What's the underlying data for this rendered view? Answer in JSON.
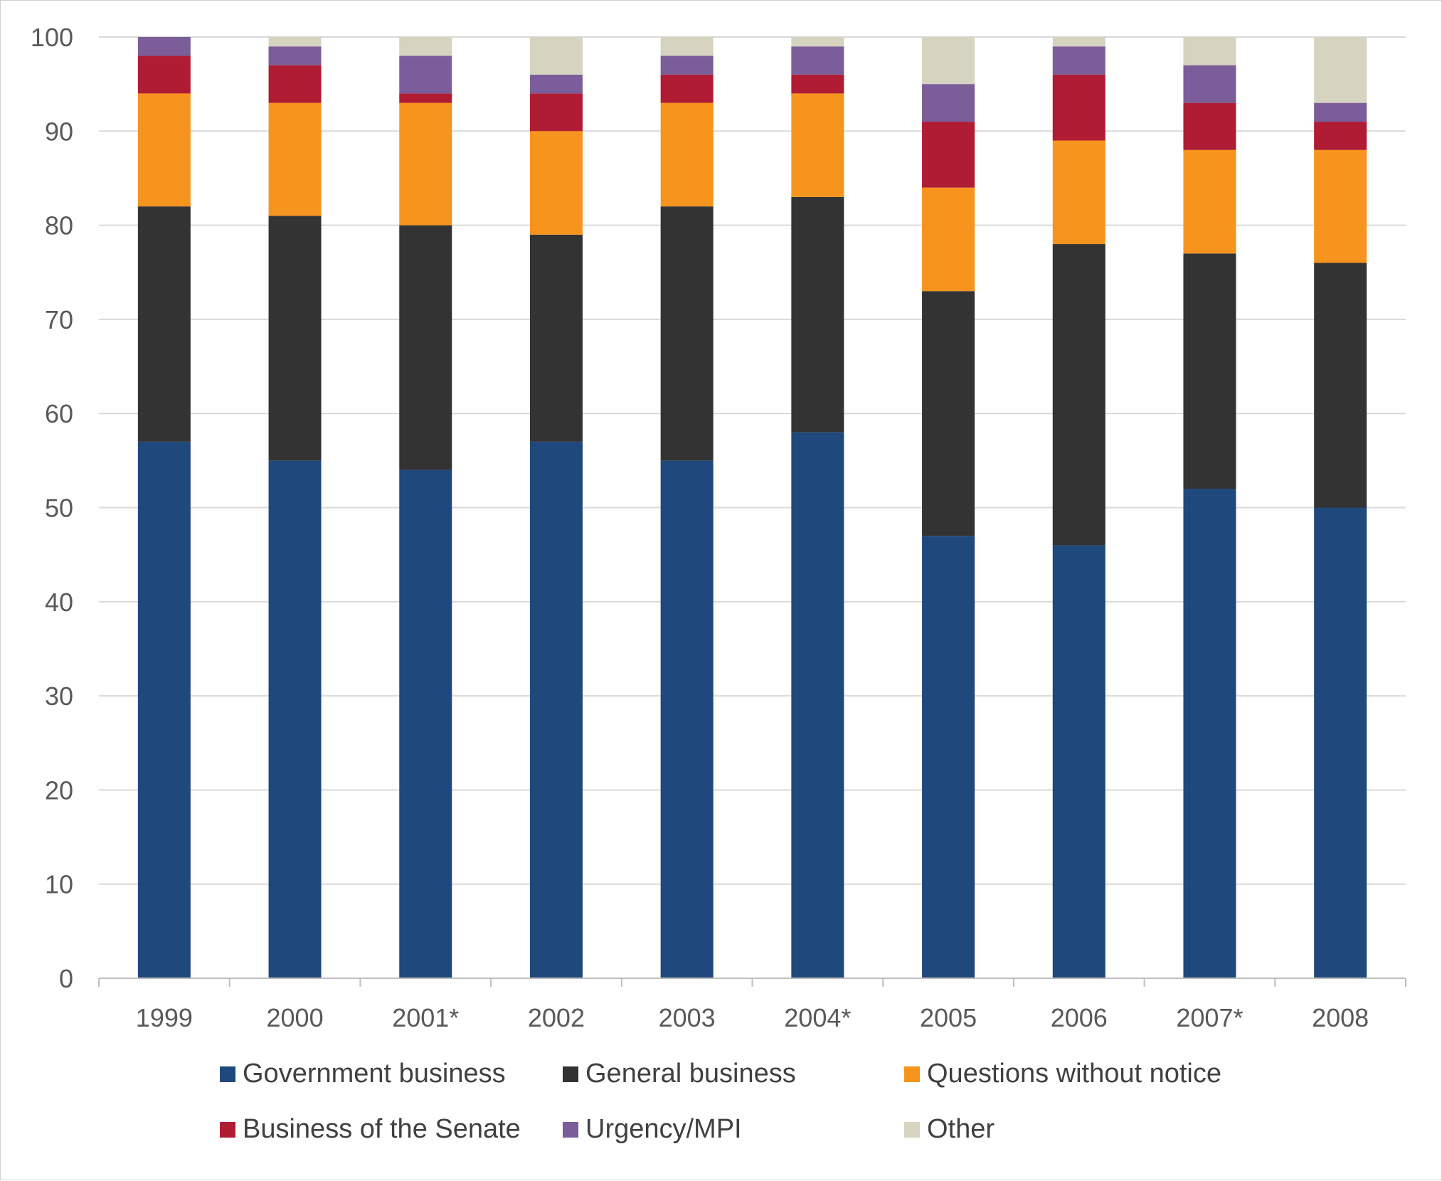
{
  "chart_data": {
    "type": "bar",
    "stacked": true,
    "title": "",
    "xlabel": "",
    "ylabel": "",
    "ylim": [
      0,
      100
    ],
    "yticks": [
      0,
      10,
      20,
      30,
      40,
      50,
      60,
      70,
      80,
      90,
      100
    ],
    "grid": true,
    "legend_position": "bottom",
    "categories": [
      "1999",
      "2000",
      "2001*",
      "2002",
      "2003",
      "2004*",
      "2005",
      "2006",
      "2007*",
      "2008"
    ],
    "series": [
      {
        "name": "Government business",
        "color": "#1f497d",
        "values": [
          57,
          55,
          54,
          57,
          55,
          58,
          47,
          46,
          52,
          50
        ]
      },
      {
        "name": "General business",
        "color": "#333333",
        "values": [
          25,
          26,
          26,
          22,
          27,
          25,
          26,
          32,
          25,
          26
        ]
      },
      {
        "name": "Questions without notice",
        "color": "#f7941d",
        "values": [
          12,
          12,
          13,
          11,
          11,
          11,
          11,
          11,
          11,
          12
        ]
      },
      {
        "name": "Business of the Senate",
        "color": "#b01c34",
        "values": [
          4,
          4,
          1,
          4,
          3,
          2,
          7,
          7,
          5,
          3
        ]
      },
      {
        "name": "Urgency/MPI",
        "color": "#7b5e99",
        "values": [
          2,
          2,
          4,
          2,
          2,
          3,
          4,
          3,
          4,
          2
        ]
      },
      {
        "name": "Other",
        "color": "#d6d3c0",
        "values": [
          0,
          1,
          2,
          4,
          2,
          1,
          5,
          1,
          3,
          7
        ]
      }
    ]
  }
}
